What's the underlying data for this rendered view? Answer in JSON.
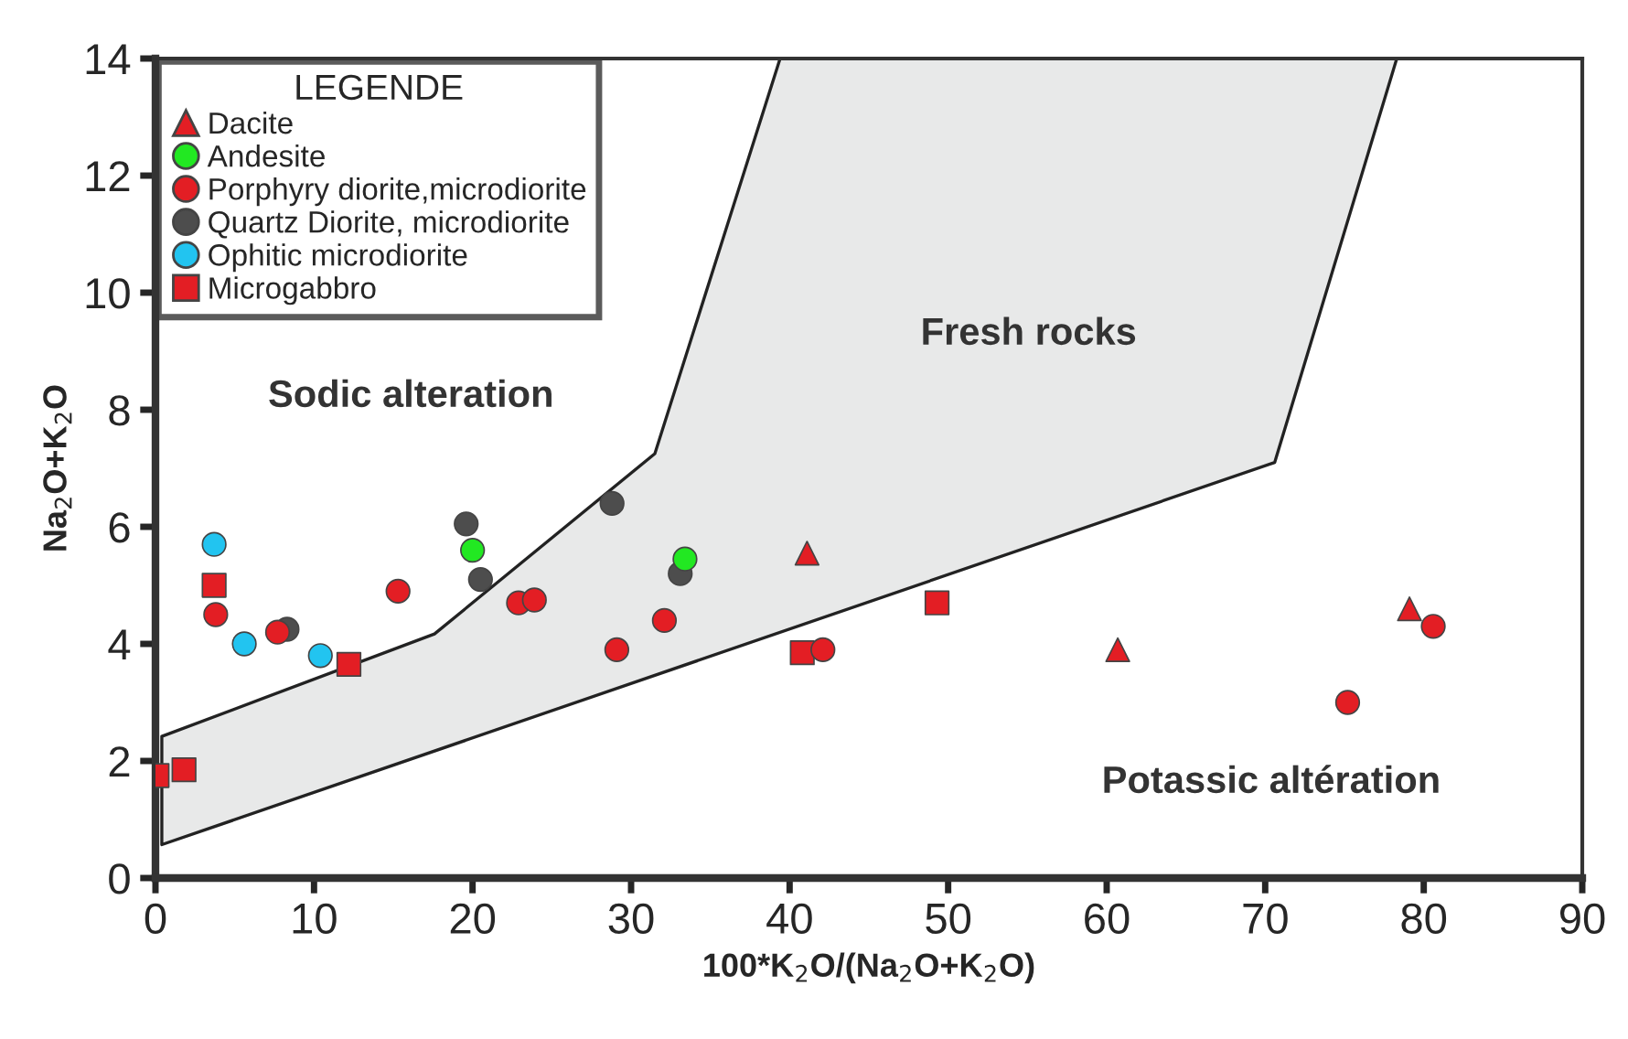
{
  "chart_data": {
    "type": "scatter",
    "xlabel": "100*K$_{2}$O/(Na$_{2}$O+K$_{2}$O)",
    "ylabel": "Na$_{2}$O+K$_{2}$O",
    "legend_title": "LEGENDE",
    "legend": "top left",
    "grid": false,
    "xlim": [
      0,
      90
    ],
    "xticks": [
      0,
      10,
      20,
      30,
      40,
      50,
      60,
      70,
      80,
      90
    ],
    "ylim": [
      0,
      14
    ],
    "yticks": [
      0,
      2,
      4,
      6,
      8,
      10,
      12,
      14
    ],
    "annotations": [
      "Fresh rocks",
      "Sodic alteration",
      "Potassic altération"
    ],
    "series": [
      {
        "type": "area",
        "color": "#e8e9e9",
        "x": [
          0.4,
          0.4,
          17.6,
          31.5,
          39.4,
          78.3,
          70.6,
          0.4
        ],
        "values": [
          0.57,
          2.42,
          4.17,
          7.25,
          14,
          14,
          7.1,
          0.57
        ]
      },
      {
        "name": "Dacite",
        "marker": "triangle",
        "color": "#e31e24",
        "x": [
          41.1,
          60.7,
          79.1
        ],
        "values": [
          5.55,
          3.9,
          4.6
        ]
      },
      {
        "name": "Andesite",
        "marker": "circle",
        "color": "#22e822",
        "x": [
          20.0,
          33.4
        ],
        "values": [
          5.6,
          5.45
        ]
      },
      {
        "name": "Porphyry diorite,microdiorite",
        "marker": "circle",
        "color": "#e31e24",
        "x": [
          3.8,
          7.7,
          15.3,
          22.9,
          23.9,
          29.1,
          32.1,
          42.1,
          75.2,
          80.6
        ],
        "values": [
          4.5,
          4.2,
          4.9,
          4.7,
          4.75,
          3.9,
          4.4,
          3.9,
          3.0,
          4.3
        ]
      },
      {
        "name": "Quartz Diorite, microdiorite",
        "marker": "circle",
        "color": "#4d4d4d",
        "x": [
          8.3,
          19.6,
          20.5,
          28.8,
          33.1
        ],
        "values": [
          4.25,
          6.05,
          5.1,
          6.4,
          5.2
        ]
      },
      {
        "name": "Ophitic microdiorite",
        "marker": "circle",
        "color": "#22c4f0",
        "x": [
          3.7,
          5.6,
          10.4
        ],
        "values": [
          5.7,
          4.0,
          3.8
        ]
      },
      {
        "name": "Microgabbro",
        "marker": "square",
        "color": "#e31e24",
        "x": [
          0.1,
          1.8,
          3.7,
          12.2,
          40.8,
          49.3
        ],
        "values": [
          1.75,
          1.85,
          5.0,
          3.65,
          3.85,
          4.7
        ]
      }
    ]
  }
}
